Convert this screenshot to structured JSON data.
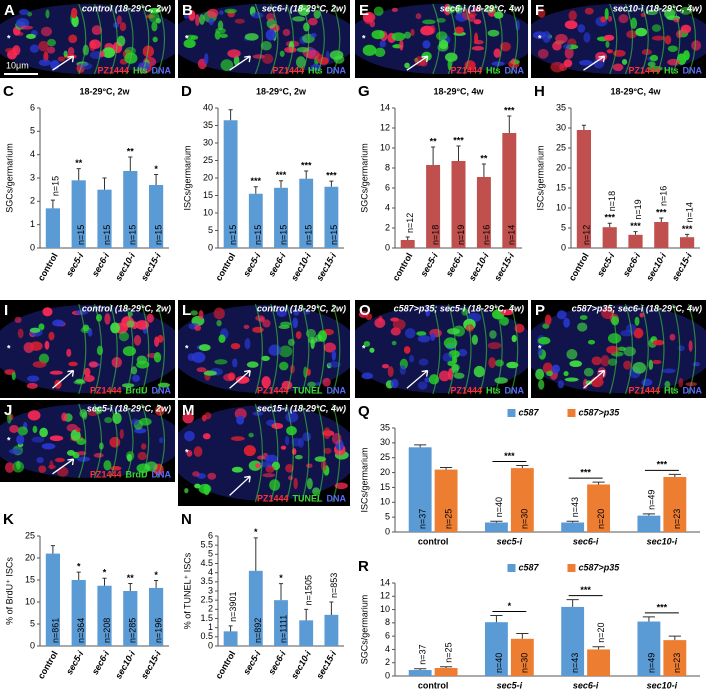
{
  "image_panels": [
    {
      "panel": "A",
      "title": "control (18-29°C, 2w)",
      "labels": [
        "PZ1444",
        "Hts",
        "DNA"
      ],
      "label_colors": [
        "#ff3030",
        "#3cdc3c",
        "#5a6cff"
      ],
      "marker": "*",
      "scale_bar": "10μm"
    },
    {
      "panel": "B",
      "title": "sec6-i (18-29°C, 2w)",
      "labels": [
        "PZ1444",
        "Hts",
        "DNA"
      ],
      "label_colors": [
        "#ff3030",
        "#3cdc3c",
        "#5a6cff"
      ],
      "marker": "*"
    },
    {
      "panel": "E",
      "title": "sec6-i (18-29°C, 4w)",
      "labels": [
        "PZ1444",
        "Hts",
        "DNA"
      ],
      "label_colors": [
        "#ff3030",
        "#3cdc3c",
        "#5a6cff"
      ],
      "marker": "*"
    },
    {
      "panel": "F",
      "title": "sec10-i (18-29°C, 4w)",
      "labels": [
        "PZ1444",
        "Hts",
        "DNA"
      ],
      "label_colors": [
        "#ff3030",
        "#3cdc3c",
        "#5a6cff"
      ],
      "marker": "*"
    },
    {
      "panel": "I",
      "title": "control (18-29°C, 2w)",
      "labels": [
        "PZ1444",
        "BrdU",
        "DNA"
      ],
      "label_colors": [
        "#ff3030",
        "#3cdc3c",
        "#5a6cff"
      ],
      "marker": "*"
    },
    {
      "panel": "L",
      "title": "control (18-29°C, 2w)",
      "labels": [
        "PZ1444",
        "TUNEL",
        "DNA"
      ],
      "label_colors": [
        "#ff3030",
        "#3cdc3c",
        "#5a6cff"
      ],
      "marker": "*"
    },
    {
      "panel": "O",
      "title": "c587>p35; sec5-i (18-29°C, 4w)",
      "labels": [
        "PZ1444",
        "Hts",
        "DNA"
      ],
      "label_colors": [
        "#ff3030",
        "#3cdc3c",
        "#5a6cff"
      ],
      "marker": "*"
    },
    {
      "panel": "P",
      "title": "c587>p35; sec6-i (18-29°C, 4w)",
      "labels": [
        "PZ1444",
        "Hts",
        "DNA"
      ],
      "label_colors": [
        "#ff3030",
        "#3cdc3c",
        "#5a6cff"
      ],
      "marker": "*"
    },
    {
      "panel": "J",
      "title": "sec5-i (18-29°C, 2w)",
      "labels": [
        "PZ1444",
        "BrdU",
        "DNA"
      ],
      "label_colors": [
        "#ff3030",
        "#3cdc3c",
        "#5a6cff"
      ],
      "marker": "*"
    },
    {
      "panel": "M",
      "title": "sec15-i (18-29°C, 4w)",
      "labels": [
        "PZ1444",
        "TUNEL",
        "DNA"
      ],
      "label_colors": [
        "#ff3030",
        "#3cdc3c",
        "#5a6cff"
      ],
      "marker": "*"
    }
  ],
  "chart_data": [
    {
      "type": "bar",
      "panel": "C",
      "title": "18-29°C, 2w",
      "y_label": "SGCs/germarium",
      "categories": [
        "control",
        "sec5-i",
        "sec6-i",
        "sec10-i",
        "sec15-i"
      ],
      "values": [
        1.7,
        2.9,
        2.5,
        3.3,
        2.7
      ],
      "errors": [
        0.35,
        0.5,
        0.5,
        0.6,
        0.45
      ],
      "significance": [
        null,
        "**",
        null,
        "**",
        "*"
      ],
      "n_labels": [
        "n=15",
        "n=15",
        "n=15",
        "n=15",
        "n=15"
      ],
      "color": "#5b9bd5",
      "ylim": [
        0,
        6
      ],
      "yticks": [
        0,
        1,
        2,
        3,
        4,
        5,
        6
      ]
    },
    {
      "type": "bar",
      "panel": "D",
      "title": "18-29°C, 2w",
      "y_label": "ISCs/germarium",
      "categories": [
        "control",
        "sec5-i",
        "sec6-i",
        "sec10-i",
        "sec15-i"
      ],
      "values": [
        36.5,
        15.5,
        17.2,
        19.8,
        17.5
      ],
      "errors": [
        3,
        2,
        2,
        2.2,
        1.6
      ],
      "significance": [
        null,
        "***",
        "***",
        "***",
        "***"
      ],
      "n_labels": [
        "n=15",
        "n=15",
        "n=15",
        "n=15",
        "n=15"
      ],
      "color": "#5b9bd5",
      "ylim": [
        0,
        40
      ],
      "yticks": [
        0,
        5,
        10,
        15,
        20,
        25,
        30,
        35,
        40
      ]
    },
    {
      "type": "bar",
      "panel": "G",
      "title": "18-29°C, 4w",
      "y_label": "SGCs/germarium",
      "categories": [
        "control",
        "sec5-i",
        "sec6-i",
        "sec10-i",
        "sec15-i"
      ],
      "values": [
        0.8,
        8.3,
        8.7,
        7.1,
        11.5
      ],
      "errors": [
        0.3,
        1.8,
        1.5,
        1.3,
        1.7
      ],
      "significance": [
        null,
        "**",
        "***",
        "**",
        "***"
      ],
      "n_labels": [
        "n=12",
        "n=18",
        "n=19",
        "n=16",
        "n=14"
      ],
      "color": "#c0504d",
      "ylim": [
        0,
        14
      ],
      "yticks": [
        0,
        2,
        4,
        6,
        8,
        10,
        12,
        14
      ]
    },
    {
      "type": "bar",
      "panel": "H",
      "title": "18-29°C, 4w",
      "y_label": "ISCs/germarium",
      "categories": [
        "control",
        "sec5-i",
        "sec6-i",
        "sec10-i",
        "sec15-i"
      ],
      "values": [
        29.5,
        5.2,
        3.3,
        6.5,
        2.7
      ],
      "errors": [
        1.2,
        1,
        0.8,
        1,
        0.7
      ],
      "significance": [
        null,
        "***",
        "***",
        "***",
        "***"
      ],
      "n_labels": [
        "n=12",
        "n=18",
        "n=19",
        "n=16",
        "n=14"
      ],
      "color": "#c0504d",
      "ylim": [
        0,
        35
      ],
      "yticks": [
        0,
        5,
        10,
        15,
        20,
        25,
        30,
        35
      ]
    },
    {
      "type": "bar",
      "panel": "K",
      "y_label": "% of BrdU⁺ ISCs",
      "categories": [
        "control",
        "sec5-i",
        "sec6-i",
        "sec10-i",
        "sec15-i"
      ],
      "values": [
        21,
        15,
        13.7,
        12.5,
        13.2
      ],
      "errors": [
        1.8,
        1.8,
        1.7,
        1.7,
        1.7
      ],
      "significance": [
        null,
        "*",
        "*",
        "**",
        "*"
      ],
      "n_labels": [
        "n=861",
        "n=364",
        "n=208",
        "n=285",
        "n=196"
      ],
      "color": "#5b9bd5",
      "ylim": [
        0,
        25
      ],
      "yticks": [
        0,
        5,
        10,
        15,
        20,
        25
      ]
    },
    {
      "type": "bar",
      "panel": "N",
      "y_label": "% of TUNEL⁺ ISCs",
      "categories": [
        "control",
        "sec5-i",
        "sec6-i",
        "sec10-i",
        "sec15-i"
      ],
      "values": [
        0.8,
        4.1,
        2.5,
        1.4,
        1.7
      ],
      "errors": [
        0.3,
        1.8,
        0.9,
        0.6,
        0.7
      ],
      "significance": [
        null,
        "*",
        "*",
        null,
        null
      ],
      "n_labels": [
        "n=3901",
        "n=892",
        "n=1111",
        "n=1505",
        "n=853"
      ],
      "color": "#5b9bd5",
      "ylim": [
        0,
        6
      ],
      "yticks": [
        0,
        0.5,
        1,
        1.5,
        2,
        2.5,
        3,
        3.5,
        4,
        4.5,
        5,
        5.5,
        6
      ]
    },
    {
      "type": "grouped_bar",
      "panel": "Q",
      "y_label": "ISCs/germarium",
      "categories": [
        "control",
        "sec5-i",
        "sec6-i",
        "sec10-i"
      ],
      "series": [
        {
          "name": "c587",
          "color": "#5b9bd5",
          "values": [
            28.5,
            3.2,
            3.2,
            5.5
          ],
          "errors": [
            0.8,
            0.4,
            0.4,
            0.6
          ],
          "n_labels": [
            "n=37",
            "n=40",
            "n=43",
            "n=49"
          ]
        },
        {
          "name": "c587>p35",
          "color": "#ed7d31",
          "values": [
            21,
            21.5,
            16,
            18.5
          ],
          "errors": [
            0.7,
            0.9,
            0.8,
            0.9
          ],
          "n_labels": [
            "n=25",
            "n=30",
            "n=20",
            "n=23"
          ]
        }
      ],
      "significance": [
        null,
        "***",
        "***",
        "***"
      ],
      "ylim": [
        0,
        35
      ],
      "yticks": [
        0,
        5,
        10,
        15,
        20,
        25,
        30,
        35
      ]
    },
    {
      "type": "grouped_bar",
      "panel": "R",
      "y_label": "SGCs/germarium",
      "categories": [
        "control",
        "sec5-i",
        "sec6-i",
        "sec10-i"
      ],
      "series": [
        {
          "name": "c587",
          "color": "#5b9bd5",
          "values": [
            0.9,
            8.1,
            10.4,
            8.2
          ],
          "errors": [
            0.2,
            1,
            1.1,
            0.7
          ],
          "n_labels": [
            "n=37",
            "n=40",
            "n=43",
            "n=49"
          ]
        },
        {
          "name": "c587>p35",
          "color": "#ed7d31",
          "values": [
            1.2,
            5.6,
            4.0,
            5.4
          ],
          "errors": [
            0.2,
            0.8,
            0.4,
            0.6
          ],
          "n_labels": [
            "n=25",
            "n=30",
            "n=20",
            "n=23"
          ]
        }
      ],
      "significance": [
        null,
        "*",
        "***",
        "***"
      ],
      "ylim": [
        0,
        14
      ],
      "yticks": [
        0,
        2,
        4,
        6,
        8,
        10,
        12,
        14
      ]
    }
  ]
}
